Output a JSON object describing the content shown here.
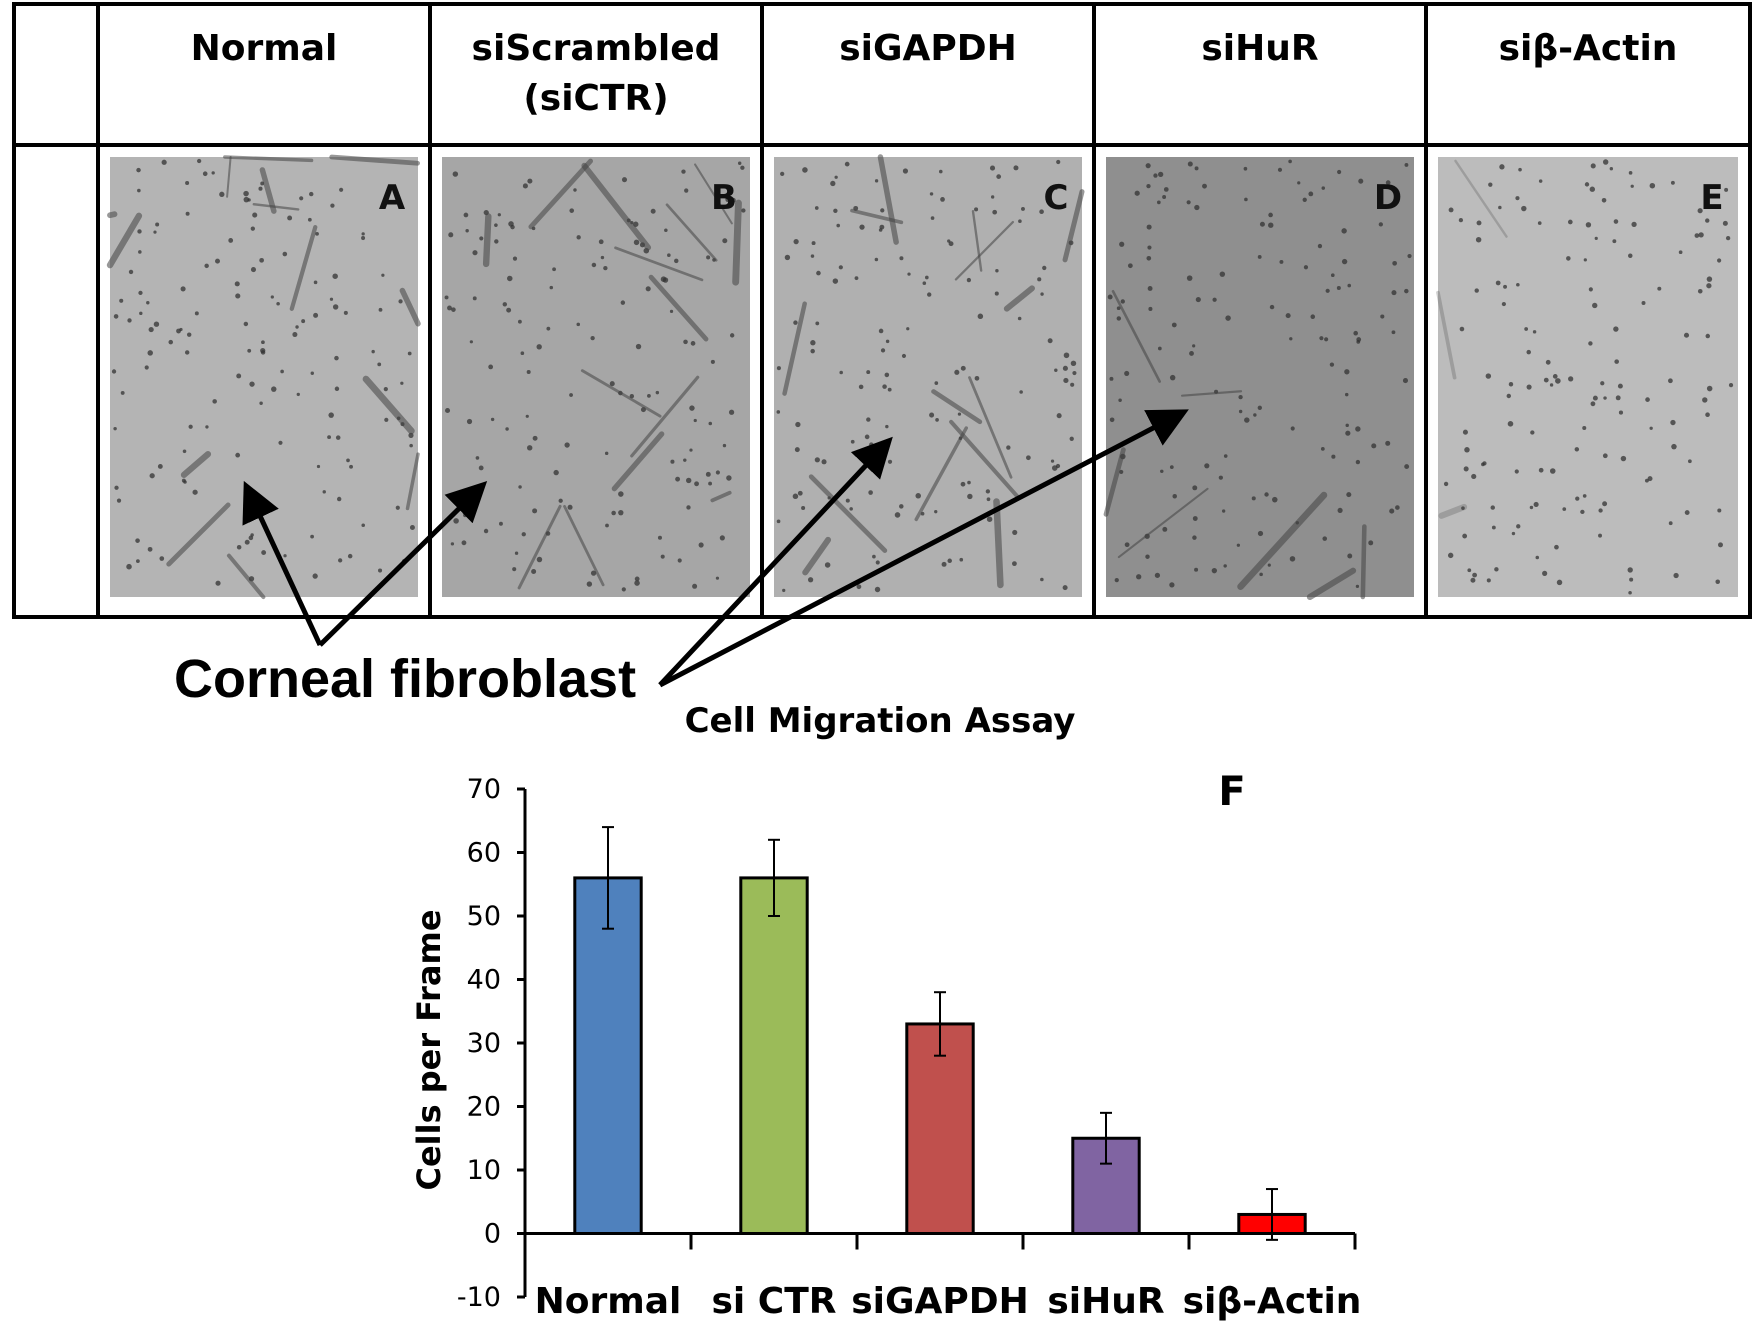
{
  "panels": [
    {
      "header_lines": [
        "Normal"
      ],
      "letter": "A",
      "bg": "#b4b4b4"
    },
    {
      "header_lines": [
        "siScrambled",
        "(siCTR)"
      ],
      "letter": "B",
      "bg": "#a6a6a6"
    },
    {
      "header_lines": [
        "siGAPDH"
      ],
      "letter": "C",
      "bg": "#b0b0b0"
    },
    {
      "header_lines": [
        "siHuR"
      ],
      "letter": "D",
      "bg": "#8f8f8f"
    },
    {
      "header_lines": [
        "siβ-Actin"
      ],
      "letter": "E",
      "bg": "#bcbcbc"
    }
  ],
  "annotation": "Corneal fibroblast",
  "chart_data": {
    "type": "bar",
    "title": "Cell Migration Assay",
    "panel_label": "F",
    "ylabel": "Cells per Frame",
    "xlabel": "",
    "ylim": [
      -10,
      70
    ],
    "yticks": [
      -10,
      0,
      10,
      20,
      30,
      40,
      50,
      60,
      70
    ],
    "categories": [
      "Normal",
      "si CTR",
      "siGAPDH",
      "siHuR",
      "siβ-Actin"
    ],
    "values": [
      56,
      56,
      33,
      15,
      3
    ],
    "errors": [
      8,
      6,
      5,
      4,
      4
    ],
    "colors": [
      "#4f81bd",
      "#9bbb59",
      "#c0504d",
      "#8064a2",
      "#ff0000"
    ],
    "grid": false,
    "legend": "none"
  }
}
